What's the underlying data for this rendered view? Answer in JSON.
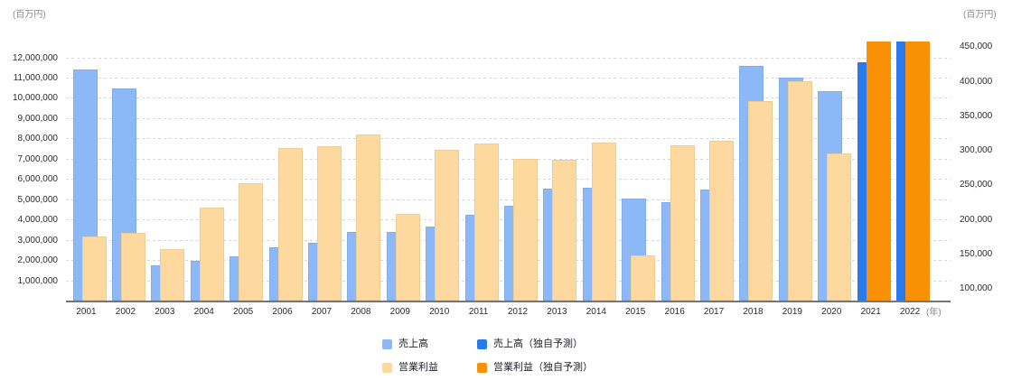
{
  "chart_data": {
    "type": "bar",
    "title": "",
    "categories": [
      "2001",
      "2002",
      "2003",
      "2004",
      "2005",
      "2006",
      "2007",
      "2008",
      "2009",
      "2010",
      "2011",
      "2012",
      "2013",
      "2014",
      "2015",
      "2016",
      "2017",
      "2018",
      "2019",
      "2020",
      "2021",
      "2022"
    ],
    "series": [
      {
        "name": "売上高",
        "axis": "left",
        "color": "#8CB8F8",
        "values": [
          11400000,
          10450000,
          1720000,
          1980000,
          2180000,
          2630000,
          2850000,
          3390000,
          3390000,
          3650000,
          4250000,
          4670000,
          5540000,
          5560000,
          5050000,
          4840000,
          5490000,
          11600000,
          11000000,
          10350000,
          null,
          null
        ]
      },
      {
        "name": "売上高（独自予測）",
        "axis": "left",
        "color": "#2A7AEC",
        "values": [
          null,
          null,
          null,
          null,
          null,
          null,
          null,
          null,
          null,
          null,
          null,
          null,
          null,
          null,
          null,
          null,
          null,
          null,
          null,
          null,
          11740000,
          12800000
        ]
      },
      {
        "name": "営業利益",
        "axis": "right",
        "color": "#FDD9A0",
        "values": [
          175000,
          180000,
          157000,
          216000,
          252000,
          303000,
          305000,
          323000,
          208000,
          300000,
          310000,
          287000,
          286000,
          311000,
          148000,
          307000,
          313000,
          371000,
          400000,
          295000,
          null,
          null
        ]
      },
      {
        "name": "営業利益（独自予測）",
        "axis": "right",
        "color": "#FA9005",
        "values": [
          null,
          null,
          null,
          null,
          null,
          null,
          null,
          null,
          null,
          null,
          null,
          null,
          null,
          null,
          null,
          null,
          null,
          null,
          null,
          null,
          460000,
          460000
        ]
      }
    ],
    "left_axis": {
      "unit": "(百万円)",
      "tick_values": [
        1000000,
        2000000,
        3000000,
        4000000,
        5000000,
        6000000,
        7000000,
        8000000,
        9000000,
        10000000,
        11000000,
        12000000
      ],
      "tick_labels": [
        "1,000,000",
        "2,000,000",
        "3,000,000",
        "4,000,000",
        "5,000,000",
        "6,000,000",
        "7,000,000",
        "8,000,000",
        "9,000,000",
        "10,000,000",
        "11,000,000",
        "12,000,000"
      ],
      "range": [
        0,
        12780000
      ]
    },
    "right_axis": {
      "unit": "(百万円)",
      "tick_values": [
        100000,
        150000,
        200000,
        250000,
        300000,
        350000,
        400000,
        450000
      ],
      "tick_labels": [
        "100,000",
        "150,000",
        "200,000",
        "250,000",
        "300,000",
        "350,000",
        "400,000",
        "450,000"
      ],
      "range": [
        82000,
        457000
      ]
    },
    "x_axis": {
      "unit": "(年)"
    },
    "grid": "dashed-horizontal",
    "legend_position": "bottom"
  },
  "legend": {
    "items": [
      {
        "label": "売上高",
        "color": "#8CB8F8"
      },
      {
        "label": "売上高（独自予測）",
        "color": "#2A7AEC"
      },
      {
        "label": "営業利益",
        "color": "#FDD9A0"
      },
      {
        "label": "営業利益（独自予測）",
        "color": "#FA9005"
      }
    ]
  },
  "colors": {
    "grid": "#D8D8DC",
    "axis_line": "#75757D",
    "tick_text": "#2B2B33",
    "unit_text": "#8A8A92"
  }
}
